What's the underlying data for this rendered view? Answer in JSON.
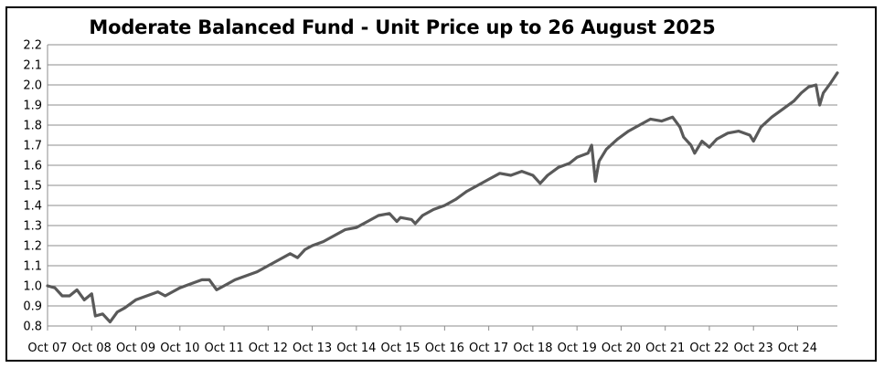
{
  "chart_data": {
    "type": "line",
    "title": "Moderate Balanced Fund - Unit Price up to 26 August 2025",
    "xlabel": "",
    "ylabel": "",
    "ylim": [
      0.8,
      2.2
    ],
    "yticks": [
      "0.8",
      "0.9",
      "1.0",
      "1.1",
      "1.2",
      "1.3",
      "1.4",
      "1.5",
      "1.6",
      "1.7",
      "1.8",
      "1.9",
      "2.0",
      "2.1",
      "2.2"
    ],
    "xticks": [
      "Oct 07",
      "Oct 08",
      "Oct 09",
      "Oct 10",
      "Oct 11",
      "Oct 12",
      "Oct 13",
      "Oct 14",
      "Oct 15",
      "Oct 16",
      "Oct 17",
      "Oct 18",
      "Oct 19",
      "Oct 20",
      "Oct 21",
      "Oct 22",
      "Oct 23",
      "Oct 24"
    ],
    "xrange": [
      "2007-10",
      "2025-08-26"
    ],
    "grid": true,
    "legend": "none",
    "series": [
      {
        "color": "#595959",
        "x": [
          "2007-10",
          "2007-12",
          "2008-02",
          "2008-04",
          "2008-06",
          "2008-08",
          "2008-10",
          "2008-11",
          "2009-01",
          "2009-03",
          "2009-05",
          "2009-07",
          "2009-10",
          "2010-01",
          "2010-04",
          "2010-06",
          "2010-08",
          "2010-10",
          "2011-01",
          "2011-04",
          "2011-06",
          "2011-08",
          "2011-10",
          "2012-01",
          "2012-04",
          "2012-07",
          "2012-10",
          "2013-01",
          "2013-04",
          "2013-06",
          "2013-08",
          "2013-10",
          "2014-01",
          "2014-04",
          "2014-07",
          "2014-10",
          "2015-01",
          "2015-04",
          "2015-07",
          "2015-09",
          "2015-10",
          "2016-01",
          "2016-02",
          "2016-04",
          "2016-07",
          "2016-10",
          "2017-01",
          "2017-04",
          "2017-07",
          "2017-10",
          "2018-01",
          "2018-04",
          "2018-07",
          "2018-10",
          "2018-12",
          "2019-02",
          "2019-05",
          "2019-08",
          "2019-10",
          "2020-01",
          "2020-02",
          "2020-03",
          "2020-04",
          "2020-06",
          "2020-09",
          "2020-12",
          "2021-03",
          "2021-06",
          "2021-09",
          "2021-12",
          "2022-02",
          "2022-03",
          "2022-05",
          "2022-06",
          "2022-08",
          "2022-10",
          "2022-12",
          "2023-03",
          "2023-06",
          "2023-09",
          "2023-10",
          "2023-12",
          "2024-03",
          "2024-06",
          "2024-09",
          "2024-11",
          "2025-01",
          "2025-03",
          "2025-04",
          "2025-05",
          "2025-07",
          "2025-08-26"
        ],
        "values": [
          1.0,
          0.99,
          0.95,
          0.95,
          0.98,
          0.93,
          0.96,
          0.85,
          0.86,
          0.82,
          0.87,
          0.89,
          0.93,
          0.95,
          0.97,
          0.95,
          0.97,
          0.99,
          1.01,
          1.03,
          1.03,
          0.98,
          1.0,
          1.03,
          1.05,
          1.07,
          1.1,
          1.13,
          1.16,
          1.14,
          1.18,
          1.2,
          1.22,
          1.25,
          1.28,
          1.29,
          1.32,
          1.35,
          1.36,
          1.32,
          1.34,
          1.33,
          1.31,
          1.35,
          1.38,
          1.4,
          1.43,
          1.47,
          1.5,
          1.53,
          1.56,
          1.55,
          1.57,
          1.55,
          1.51,
          1.55,
          1.59,
          1.61,
          1.64,
          1.66,
          1.7,
          1.52,
          1.62,
          1.68,
          1.73,
          1.77,
          1.8,
          1.83,
          1.82,
          1.84,
          1.79,
          1.74,
          1.7,
          1.66,
          1.72,
          1.69,
          1.73,
          1.76,
          1.77,
          1.75,
          1.72,
          1.79,
          1.84,
          1.88,
          1.92,
          1.96,
          1.99,
          2.0,
          1.9,
          1.96,
          2.01,
          2.06
        ]
      }
    ]
  }
}
